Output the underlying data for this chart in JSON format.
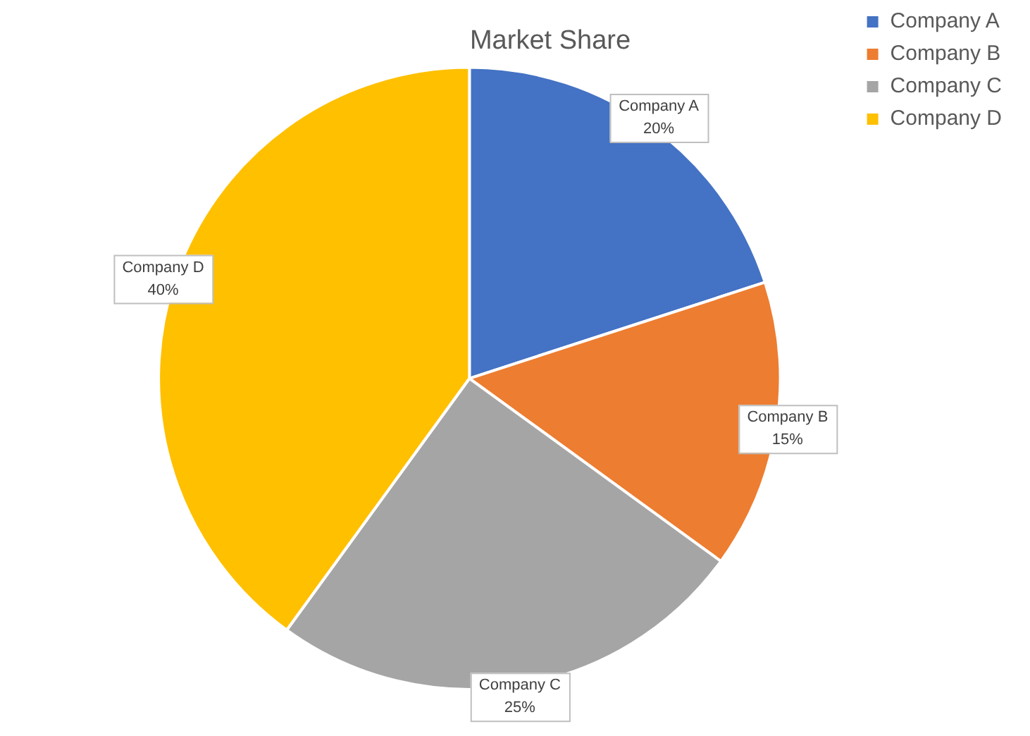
{
  "chart_data": {
    "type": "pie",
    "title": "Market Share",
    "categories": [
      "Company A",
      "Company B",
      "Company C",
      "Company D"
    ],
    "values": [
      20,
      15,
      25,
      40
    ],
    "colors": [
      "#4472c4",
      "#ed7d31",
      "#a5a5a5",
      "#ffc000"
    ],
    "value_labels": [
      "20%",
      "15%",
      "25%",
      "40%"
    ],
    "legend": "top right"
  }
}
